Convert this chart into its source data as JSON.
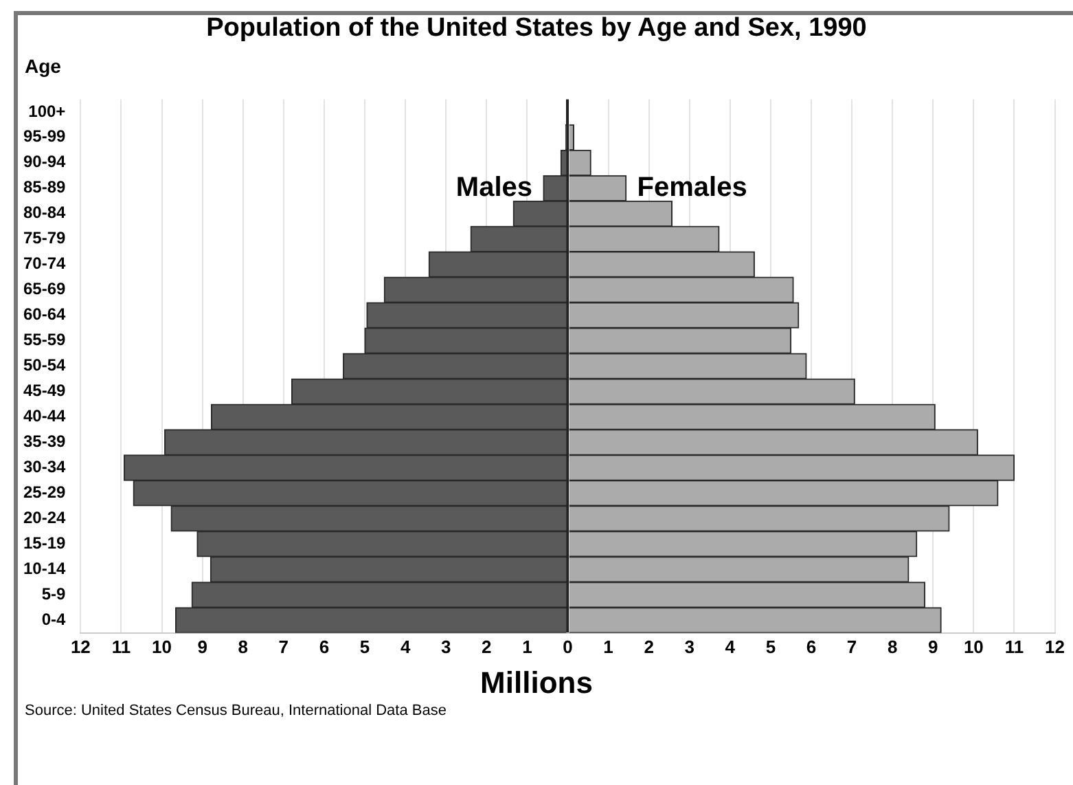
{
  "chart_data": {
    "type": "bar",
    "orientation": "horizontal",
    "stacked": true,
    "title": "Population of the United States by Age and Sex, 1990",
    "ylabel": "Age",
    "xlabel": "Millions",
    "annotations": [
      "Source: United States Census Bureau, International Data Base"
    ],
    "categories": [
      "100+",
      "95-99",
      "90-94",
      "85-89",
      "80-84",
      "75-79",
      "70-74",
      "65-69",
      "60-64",
      "55-59",
      "50-54",
      "45-49",
      "40-44",
      "35-39",
      "30-34",
      "25-29",
      "20-24",
      "15-19",
      "10-14",
      "5-9",
      "0-4"
    ],
    "series": [
      {
        "name": "Males",
        "color": "#5a5a5a",
        "values": [
          null,
          -0.05,
          -0.17,
          -0.6,
          -1.34,
          -2.39,
          -3.42,
          -4.52,
          -4.95,
          -5.0,
          -5.53,
          -6.8,
          -8.78,
          -9.93,
          -10.93,
          -10.7,
          -9.77,
          -9.13,
          -8.8,
          -9.26,
          -9.66
        ]
      },
      {
        "name": "Females",
        "color": "#ababab",
        "values": [
          null,
          0.15,
          0.57,
          1.44,
          2.57,
          3.73,
          4.6,
          5.56,
          5.69,
          5.5,
          5.88,
          7.07,
          9.05,
          10.1,
          11.0,
          10.6,
          9.4,
          8.6,
          8.4,
          8.8,
          9.2
        ]
      }
    ],
    "xlim": [
      -12,
      12
    ],
    "xticks": [
      {
        "value": -12,
        "label": "12"
      },
      {
        "value": -11,
        "label": "11"
      },
      {
        "value": -10,
        "label": "10"
      },
      {
        "value": -9,
        "label": "9"
      },
      {
        "value": -8,
        "label": "8"
      },
      {
        "value": -7,
        "label": "7"
      },
      {
        "value": -6,
        "label": "6"
      },
      {
        "value": -5,
        "label": "5"
      },
      {
        "value": -4,
        "label": "4"
      },
      {
        "value": -3,
        "label": "3"
      },
      {
        "value": -2,
        "label": "2"
      },
      {
        "value": -1,
        "label": "1"
      },
      0,
      1,
      2,
      3,
      4,
      5,
      6,
      7,
      8,
      9,
      10,
      11,
      12
    ],
    "grid": "x",
    "legend": false
  }
}
